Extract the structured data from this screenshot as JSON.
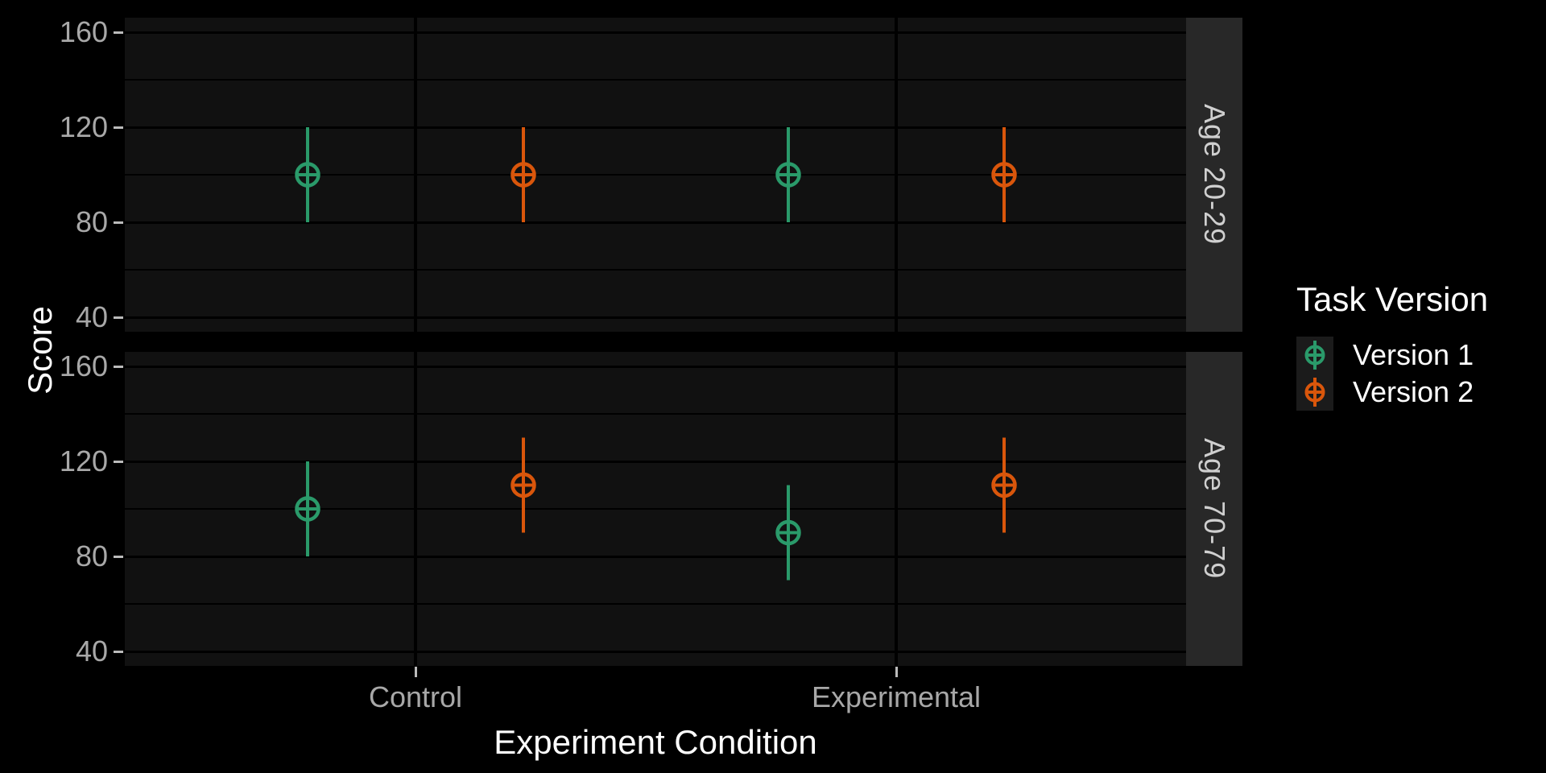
{
  "figure": {
    "background": "#000000",
    "panel_background": "#111111",
    "gridline_color": "#000000",
    "strip_background": "#282828",
    "strip_text_color": "#CFCFCF",
    "axis_text_color": "#A8A8A8",
    "axis_title_color": "#FFFFFF",
    "tick_mark_color": "#BBBBBB",
    "legend_key_background": "#1B1B1B"
  },
  "chart_data": {
    "type": "pointrange",
    "title": "",
    "xlabel": "Experiment Condition",
    "ylabel": "Score",
    "x_categories": [
      "Control",
      "Experimental"
    ],
    "y_major_ticks": [
      160,
      120,
      80,
      40
    ],
    "y_minor_gridlines": [
      140,
      100,
      60
    ],
    "y_axis_range": [
      34,
      166
    ],
    "grid": "horizontal major+minor black lines, vertical major at category centers",
    "legend": {
      "title": "Task Version",
      "position": "right",
      "entries": [
        {
          "label": "Version 1",
          "color": "#2A9A6A"
        },
        {
          "label": "Version 2",
          "color": "#D9560B"
        }
      ]
    },
    "facets": [
      {
        "label": "Age 20-29",
        "points": [
          {
            "x": "Control",
            "series": "Version 1",
            "y": 100,
            "ymin": 80,
            "ymax": 120
          },
          {
            "x": "Control",
            "series": "Version 2",
            "y": 100,
            "ymin": 80,
            "ymax": 120
          },
          {
            "x": "Experimental",
            "series": "Version 1",
            "y": 100,
            "ymin": 80,
            "ymax": 120
          },
          {
            "x": "Experimental",
            "series": "Version 2",
            "y": 100,
            "ymin": 80,
            "ymax": 120
          }
        ]
      },
      {
        "label": "Age 70-79",
        "points": [
          {
            "x": "Control",
            "series": "Version 1",
            "y": 100,
            "ymin": 80,
            "ymax": 120
          },
          {
            "x": "Control",
            "series": "Version 2",
            "y": 110,
            "ymin": 90,
            "ymax": 130
          },
          {
            "x": "Experimental",
            "series": "Version 1",
            "y": 90,
            "ymin": 70,
            "ymax": 110
          },
          {
            "x": "Experimental",
            "series": "Version 2",
            "y": 110,
            "ymin": 90,
            "ymax": 130
          }
        ]
      }
    ]
  }
}
